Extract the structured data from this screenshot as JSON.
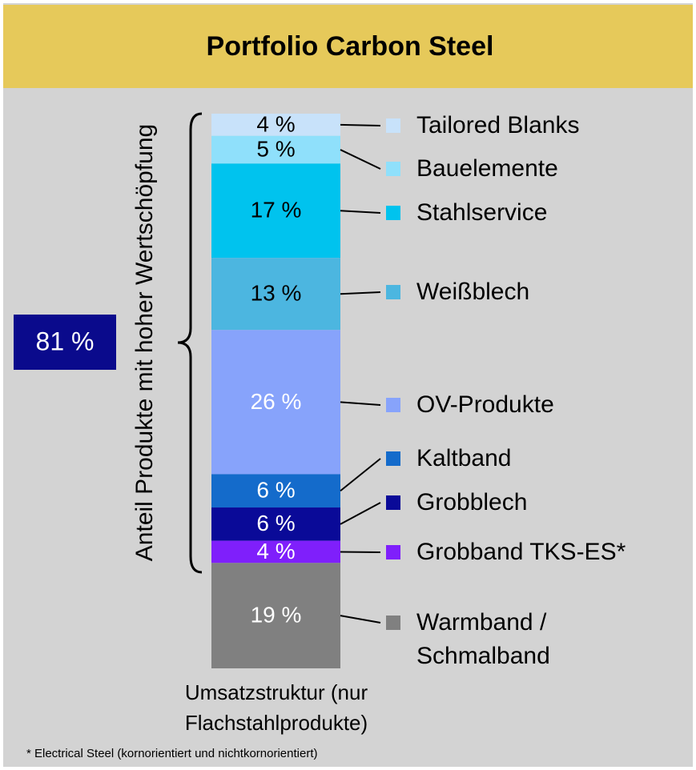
{
  "chart_data": {
    "type": "bar",
    "stacked": true,
    "title": "Portfolio Carbon Steel",
    "ylabel": "Anteil Produkte mit hoher Wertschöpfung",
    "annotation": "81 %",
    "xlabel": "Umsatzstruktur (nur Flachstahlprodukte)",
    "footnote": "*  Electrical Steel (kornorientiert und nichtkornorientiert)",
    "series": [
      {
        "name": "Tailored Blanks",
        "color": "#c8e2fa",
        "values": [
          4
        ],
        "value_labels": [
          "4 %"
        ]
      },
      {
        "name": "Bauelemente",
        "color": "#8fe0fb",
        "values": [
          5
        ],
        "value_labels": [
          "5 %"
        ]
      },
      {
        "name": "Stahlservice",
        "color": "#00c3ee",
        "values": [
          17
        ],
        "value_labels": [
          "17 %"
        ]
      },
      {
        "name": "Weißblech",
        "color": "#4cb6e0",
        "values": [
          13
        ],
        "value_labels": [
          "13 %"
        ]
      },
      {
        "name": "OV-Produkte",
        "color": "#87a3fb",
        "values": [
          26
        ],
        "value_labels": [
          "26 %"
        ]
      },
      {
        "name": "Kaltband",
        "color": "#146bcb",
        "values": [
          6
        ],
        "value_labels": [
          "6 %"
        ]
      },
      {
        "name": "Grobblech",
        "color": "#0a0a98",
        "values": [
          6
        ],
        "value_labels": [
          "6 %"
        ]
      },
      {
        "name": "Grobband TKS-ES*",
        "color": "#7f1ffb",
        "values": [
          4
        ],
        "value_labels": [
          "4 %"
        ]
      },
      {
        "name": "Warmband / Schmalband",
        "color": "#808080",
        "values": [
          19
        ],
        "value_labels": [
          "19 %"
        ]
      }
    ]
  }
}
